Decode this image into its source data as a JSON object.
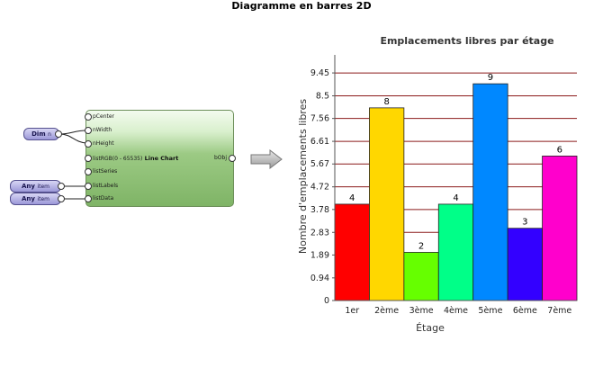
{
  "page_title": "Diagramme en barres 2D",
  "node": {
    "inputs": [
      "pCenter",
      "nWidth",
      "nHeight",
      "listRGB(0 - 65535)",
      "listSeries",
      "listLabels",
      "listData"
    ],
    "name": "Line Chart",
    "output": "bObj"
  },
  "input_nodes": [
    {
      "label": "Dim",
      "sub": "n"
    },
    {
      "label": "Any",
      "sub": "item"
    },
    {
      "label": "Any",
      "sub": "item"
    }
  ],
  "colors": {
    "node_border": "#6d8f5a",
    "input_node_fill": "#9c98d8",
    "gridline": "#8b1a1a"
  },
  "chart_data": {
    "type": "bar",
    "title": "Emplacements libres par étage",
    "xlabel": "Étage",
    "ylabel": "Nombre d'emplacements libres",
    "categories": [
      "1er",
      "2ème",
      "3ème",
      "4ème",
      "5ème",
      "6ème",
      "7ème"
    ],
    "values": [
      4,
      8,
      2,
      4,
      9,
      3,
      6
    ],
    "colors": [
      "#ff0000",
      "#ffd700",
      "#66ff00",
      "#00ff88",
      "#0088ff",
      "#3300ff",
      "#ff00cc"
    ],
    "yticks": [
      "0",
      "0.94",
      "1.89",
      "2.83",
      "3.78",
      "4.72",
      "5.67",
      "6.61",
      "7.56",
      "8.5",
      "9.45"
    ],
    "ylim": [
      0,
      10.2
    ],
    "grid": true,
    "legend": "none"
  }
}
